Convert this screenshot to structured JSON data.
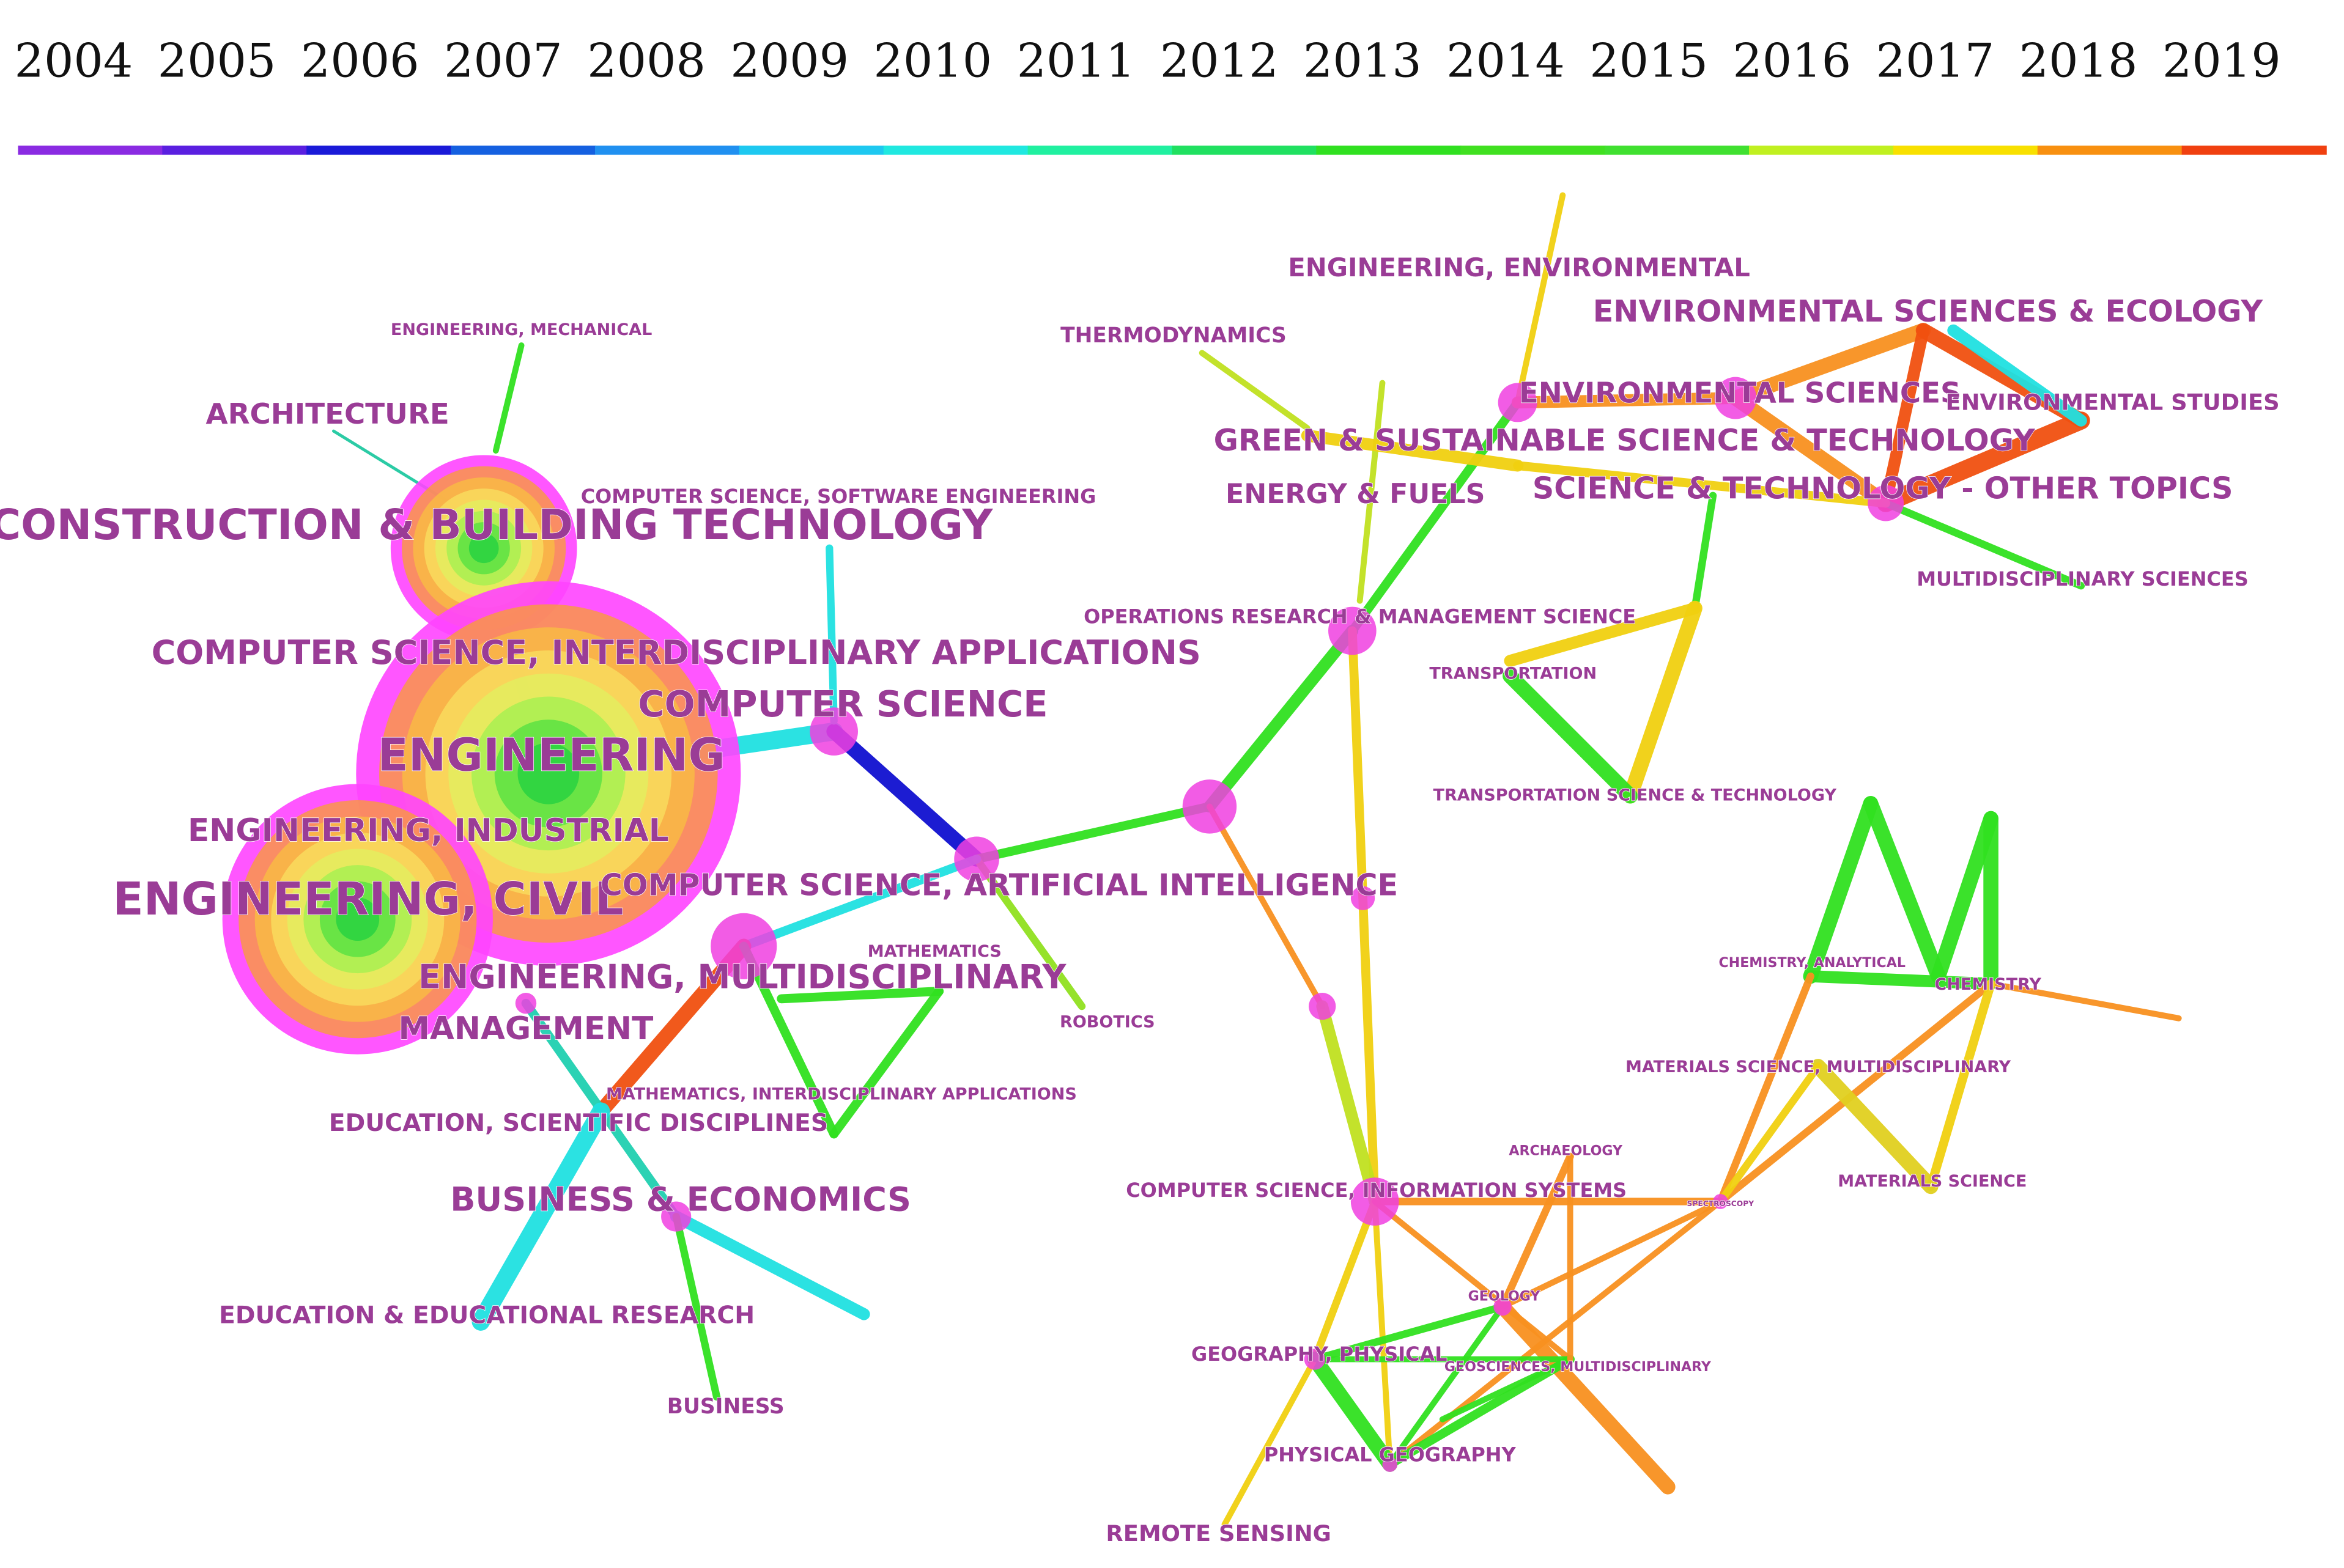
{
  "timeline": {
    "years": [
      "2004",
      "2005",
      "2006",
      "2007",
      "2008",
      "2009",
      "2010",
      "2011",
      "2012",
      "2013",
      "2014",
      "2015",
      "2016",
      "2017",
      "2018",
      "2019"
    ]
  },
  "nodes": [
    {
      "label": "ENGINEERING, MECHANICAL"
    },
    {
      "label": "ARCHITECTURE"
    },
    {
      "label": "CONSTRUCTION & BUILDING TECHNOLOGY"
    },
    {
      "label": "COMPUTER SCIENCE, SOFTWARE ENGINEERING"
    },
    {
      "label": "COMPUTER SCIENCE, INTERDISCIPLINARY APPLICATIONS"
    },
    {
      "label": "COMPUTER SCIENCE"
    },
    {
      "label": "ENGINEERING"
    },
    {
      "label": "ENGINEERING, INDUSTRIAL"
    },
    {
      "label": "ENGINEERING, CIVIL"
    },
    {
      "label": "COMPUTER SCIENCE, ARTIFICIAL INTELLIGENCE"
    },
    {
      "label": "MATHEMATICS"
    },
    {
      "label": "ENGINEERING, MULTIDISCIPLINARY"
    },
    {
      "label": "ROBOTICS"
    },
    {
      "label": "MANAGEMENT"
    },
    {
      "label": "MATHEMATICS, INTERDISCIPLINARY APPLICATIONS"
    },
    {
      "label": "EDUCATION, SCIENTIFIC DISCIPLINES"
    },
    {
      "label": "BUSINESS & ECONOMICS"
    },
    {
      "label": "EDUCATION & EDUCATIONAL RESEARCH"
    },
    {
      "label": "BUSINESS"
    },
    {
      "label": "ENGINEERING, ENVIRONMENTAL"
    },
    {
      "label": "ENVIRONMENTAL SCIENCES & ECOLOGY"
    },
    {
      "label": "THERMODYNAMICS"
    },
    {
      "label": "ENVIRONMENTAL SCIENCES"
    },
    {
      "label": "ENVIRONMENTAL STUDIES"
    },
    {
      "label": "GREEN & SUSTAINABLE SCIENCE & TECHNOLOGY"
    },
    {
      "label": "ENERGY & FUELS"
    },
    {
      "label": "SCIENCE & TECHNOLOGY - OTHER TOPICS"
    },
    {
      "label": "MULTIDISCIPLINARY SCIENCES"
    },
    {
      "label": "OPERATIONS RESEARCH & MANAGEMENT SCIENCE"
    },
    {
      "label": "TRANSPORTATION"
    },
    {
      "label": "TRANSPORTATION SCIENCE & TECHNOLOGY"
    },
    {
      "label": "CHEMISTRY, ANALYTICAL"
    },
    {
      "label": "CHEMISTRY"
    },
    {
      "label": "MATERIALS SCIENCE, MULTIDISCIPLINARY"
    },
    {
      "label": "ARCHAEOLOGY"
    },
    {
      "label": "COMPUTER SCIENCE, INFORMATION SYSTEMS"
    },
    {
      "label": "MATERIALS SCIENCE"
    },
    {
      "label": "GEOLOGY"
    },
    {
      "label": "GEOGRAPHY, PHYSICAL"
    },
    {
      "label": "GEOSCIENCES, MULTIDISCIPLINARY"
    },
    {
      "label": "PHYSICAL GEOGRAPHY"
    },
    {
      "label": "REMOTE SENSING"
    },
    {
      "label": "SPECTROSCOPY"
    }
  ]
}
